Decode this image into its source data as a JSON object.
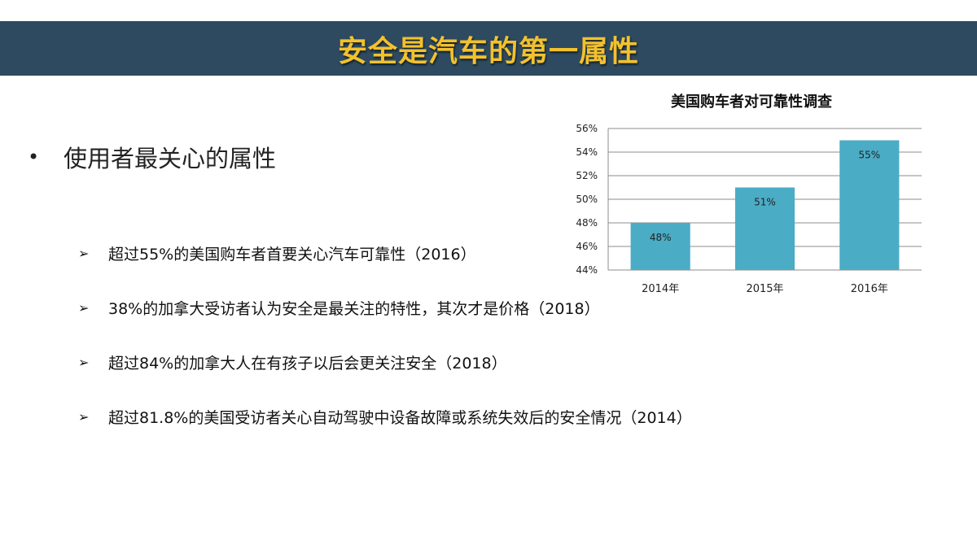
{
  "slide": {
    "title": "安全是汽车的第一属性",
    "main_bullet": "使用者最关心的属性",
    "bullet_symbol": "•",
    "sub_arrow_symbol": "➢",
    "sub_items": [
      "超过55%的美国购车者首要关心汽车可靠性（2016）",
      "38%的加拿大受访者认为安全是最关注的特性，其次才是价格（2018）",
      "超过84%的加拿大人在有孩子以后会更关注安全（2018）",
      "超过81.8%的美国受访者关心自动驾驶中设备故障或系统失效后的安全情况（2014）"
    ],
    "colors": {
      "title_bar": "#2d4a60",
      "title_text": "#f2c12e",
      "bar": "#4bacc6"
    }
  },
  "chart_data": {
    "type": "bar",
    "title": "美国购车者对可靠性调查",
    "categories": [
      "2014年",
      "2015年",
      "2016年"
    ],
    "values": [
      48,
      51,
      55
    ],
    "data_labels": [
      "48%",
      "51%",
      "55%"
    ],
    "ylim": [
      44,
      56
    ],
    "yticks": [
      44,
      46,
      48,
      50,
      52,
      54,
      56
    ],
    "ytick_labels": [
      "44%",
      "46%",
      "48%",
      "50%",
      "52%",
      "54%",
      "56%"
    ],
    "grid": true,
    "legend": "none",
    "xlabel": "",
    "ylabel": ""
  }
}
